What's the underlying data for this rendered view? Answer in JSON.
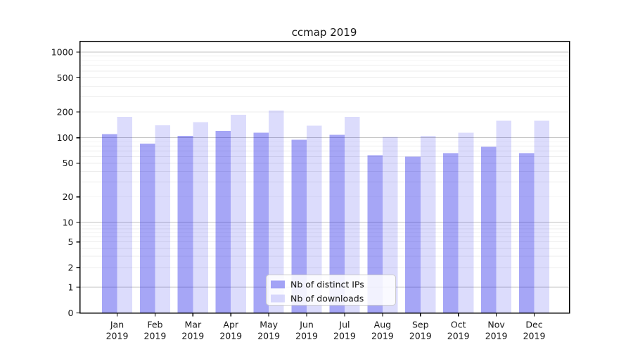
{
  "title": "ccmap 2019",
  "axes": {
    "y_tick_labels": [
      "0",
      "1",
      "2",
      "5",
      "10",
      "20",
      "50",
      "100",
      "200",
      "500",
      "1000"
    ],
    "x_months": [
      "Jan",
      "Feb",
      "Mar",
      "Apr",
      "May",
      "Jun",
      "Jul",
      "Aug",
      "Sep",
      "Oct",
      "Nov",
      "Dec"
    ],
    "x_year": "2019"
  },
  "legend": {
    "items": [
      {
        "label": "Nb of distinct IPs",
        "color": "rgba(22,22,232,0.38)",
        "color_hex": "#a3a3f3"
      },
      {
        "label": "Nb of downloads",
        "color": "rgba(22,22,232,0.15)",
        "color_hex": "#dadaf9"
      }
    ]
  },
  "chart_data": {
    "type": "bar",
    "title": "ccmap 2019",
    "categories": [
      "Jan 2019",
      "Feb 2019",
      "Mar 2019",
      "Apr 2019",
      "May 2019",
      "Jun 2019",
      "Jul 2019",
      "Aug 2019",
      "Sep 2019",
      "Oct 2019",
      "Nov 2019",
      "Dec 2019"
    ],
    "series": [
      {
        "name": "Nb of distinct IPs",
        "values": [
          110,
          85,
          105,
          120,
          115,
          95,
          108,
          62,
          60,
          66,
          78,
          66
        ]
      },
      {
        "name": "Nb of downloads",
        "values": [
          176,
          140,
          152,
          186,
          208,
          138,
          176,
          102,
          105,
          115,
          158,
          158
        ]
      }
    ],
    "xlabel": "",
    "ylabel": "",
    "yscale": "symlog",
    "yticks": [
      0,
      1,
      2,
      5,
      10,
      20,
      50,
      100,
      200,
      500,
      1000
    ],
    "ylim": [
      0,
      1340
    ],
    "grid": "horizontal, log minor lines on, decade lines emphasized",
    "legend_position": "lower center"
  }
}
